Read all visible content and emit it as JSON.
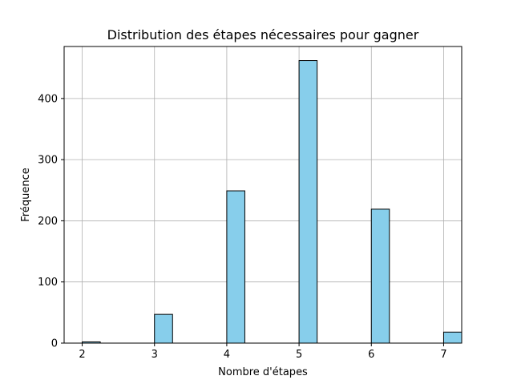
{
  "chart_data": {
    "type": "bar",
    "title": "Distribution des étapes nécessaires pour gagner",
    "xlabel": "Nombre d'étapes",
    "ylabel": "Fréquence",
    "xlim": [
      1.75,
      7.25
    ],
    "ylim": [
      0,
      485
    ],
    "xticks": [
      2,
      3,
      4,
      5,
      6,
      7
    ],
    "yticks": [
      0,
      100,
      200,
      300,
      400
    ],
    "bin_width": 0.25,
    "grid": true,
    "bar_color": "#87CEEB",
    "edge_color": "#000000",
    "bars": [
      {
        "x": 2,
        "value": 2
      },
      {
        "x": 3,
        "value": 47
      },
      {
        "x": 4,
        "value": 249
      },
      {
        "x": 5,
        "value": 462
      },
      {
        "x": 6,
        "value": 219
      },
      {
        "x": 7,
        "value": 18
      }
    ]
  }
}
